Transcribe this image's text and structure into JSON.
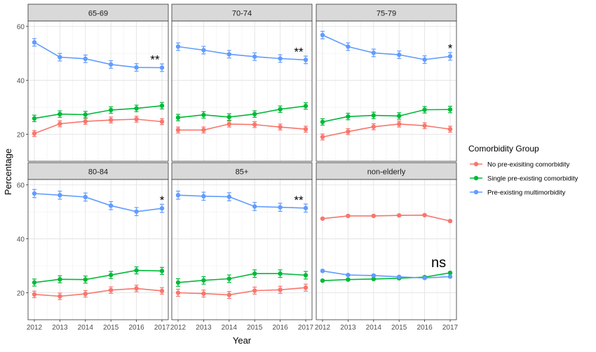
{
  "chart_data": {
    "type": "line",
    "layout": "faceted 2x3 grid with error bars",
    "xlabel": "Year",
    "ylabel": "Percentage",
    "x": [
      2012,
      2013,
      2014,
      2015,
      2016,
      2017
    ],
    "ylim": [
      10,
      62
    ],
    "yticks": [
      20,
      40,
      60
    ],
    "grid": true,
    "legend": {
      "title": "Comorbidity Group",
      "placement": "right",
      "entries": [
        {
          "label": "No pre-exisiting comorbidity",
          "color": "#F8766D"
        },
        {
          "label": "Single pre-existing comorbidity",
          "color": "#00BA38"
        },
        {
          "label": "Pre-existing multimorbidity",
          "color": "#619CFF"
        }
      ]
    },
    "panels": [
      {
        "title": "65-69",
        "annotation": "**",
        "series": [
          {
            "name": "No pre-exisiting comorbidity",
            "values": [
              20.3,
              23.9,
              24.8,
              25.3,
              25.6,
              24.7
            ],
            "error": [
              1.1,
              1.1,
              1.1,
              1.1,
              1.1,
              1.1
            ]
          },
          {
            "name": "Single pre-existing comorbidity",
            "values": [
              25.9,
              27.5,
              27.3,
              29.0,
              29.6,
              30.6
            ],
            "error": [
              1.2,
              1.2,
              1.2,
              1.2,
              1.2,
              1.2
            ]
          },
          {
            "name": "Pre-existing multimorbidity",
            "values": [
              54.1,
              48.6,
              48.0,
              45.9,
              44.8,
              44.7
            ],
            "error": [
              1.4,
              1.4,
              1.4,
              1.4,
              1.4,
              1.4
            ]
          }
        ]
      },
      {
        "title": "70-74",
        "annotation": "**",
        "series": [
          {
            "name": "No pre-exisiting comorbidity",
            "values": [
              21.6,
              21.6,
              23.8,
              23.6,
              22.7,
              21.9
            ],
            "error": [
              1.1,
              1.1,
              1.1,
              1.1,
              1.1,
              1.1
            ]
          },
          {
            "name": "Single pre-existing comorbidity",
            "values": [
              26.2,
              27.2,
              26.4,
              27.5,
              29.3,
              30.5
            ],
            "error": [
              1.2,
              1.2,
              1.2,
              1.2,
              1.2,
              1.2
            ]
          },
          {
            "name": "Pre-existing multimorbidity",
            "values": [
              52.5,
              51.2,
              49.7,
              48.8,
              48.1,
              47.6
            ],
            "error": [
              1.4,
              1.4,
              1.4,
              1.4,
              1.4,
              1.4
            ]
          }
        ]
      },
      {
        "title": "75-79",
        "annotation": "*",
        "series": [
          {
            "name": "No pre-exisiting comorbidity",
            "values": [
              19.0,
              21.0,
              22.8,
              23.8,
              23.2,
              21.9
            ],
            "error": [
              1.1,
              1.1,
              1.1,
              1.1,
              1.1,
              1.1
            ]
          },
          {
            "name": "Single pre-existing comorbidity",
            "values": [
              24.6,
              26.6,
              27.0,
              26.8,
              29.1,
              29.2
            ],
            "error": [
              1.2,
              1.2,
              1.2,
              1.2,
              1.2,
              1.2
            ]
          },
          {
            "name": "Pre-existing multimorbidity",
            "values": [
              56.8,
              52.5,
              50.2,
              49.5,
              47.7,
              48.9
            ],
            "error": [
              1.4,
              1.4,
              1.4,
              1.4,
              1.4,
              1.4
            ]
          }
        ]
      },
      {
        "title": "80-84",
        "annotation": "*",
        "series": [
          {
            "name": "No pre-exisiting comorbidity",
            "values": [
              19.4,
              18.7,
              19.6,
              21.0,
              21.6,
              20.7
            ],
            "error": [
              1.2,
              1.2,
              1.2,
              1.2,
              1.2,
              1.2
            ]
          },
          {
            "name": "Single pre-existing comorbidity",
            "values": [
              23.8,
              25.0,
              24.9,
              26.6,
              28.3,
              28.1
            ],
            "error": [
              1.3,
              1.3,
              1.3,
              1.3,
              1.3,
              1.3
            ]
          },
          {
            "name": "Pre-existing multimorbidity",
            "values": [
              56.8,
              56.2,
              55.5,
              52.3,
              50.1,
              51.3
            ],
            "error": [
              1.5,
              1.5,
              1.5,
              1.5,
              1.5,
              1.5
            ]
          }
        ]
      },
      {
        "title": "85+",
        "annotation": "**",
        "series": [
          {
            "name": "No pre-exisiting comorbidity",
            "values": [
              20.0,
              19.7,
              19.2,
              20.8,
              21.1,
              21.9
            ],
            "error": [
              1.3,
              1.3,
              1.3,
              1.3,
              1.3,
              1.3
            ]
          },
          {
            "name": "Single pre-existing comorbidity",
            "values": [
              23.8,
              24.6,
              25.2,
              27.1,
              27.1,
              26.5
            ],
            "error": [
              1.4,
              1.4,
              1.4,
              1.4,
              1.4,
              1.4
            ]
          },
          {
            "name": "Pre-existing multimorbidity",
            "values": [
              56.2,
              55.8,
              55.6,
              52.0,
              51.7,
              51.4
            ],
            "error": [
              1.5,
              1.5,
              1.5,
              1.5,
              1.5,
              1.5
            ]
          }
        ]
      },
      {
        "title": "non-elderly",
        "annotation": "ns",
        "series": [
          {
            "name": "No pre-exisiting comorbidity",
            "values": [
              47.5,
              48.5,
              48.5,
              48.7,
              48.8,
              46.6
            ],
            "error": [
              0.3,
              0.3,
              0.3,
              0.3,
              0.3,
              0.3
            ]
          },
          {
            "name": "Single pre-existing comorbidity",
            "values": [
              24.5,
              24.9,
              25.1,
              25.4,
              25.8,
              27.4
            ],
            "error": [
              0.3,
              0.3,
              0.3,
              0.3,
              0.3,
              0.3
            ]
          },
          {
            "name": "Pre-existing multimorbidity",
            "values": [
              28.1,
              26.6,
              26.4,
              25.9,
              25.5,
              26.0
            ],
            "error": [
              0.3,
              0.3,
              0.3,
              0.3,
              0.3,
              0.3
            ]
          }
        ]
      }
    ]
  }
}
